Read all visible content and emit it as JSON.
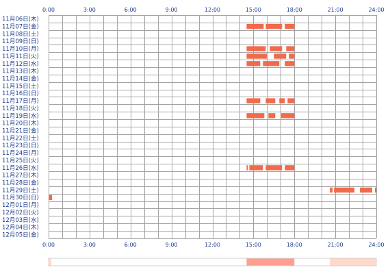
{
  "chart_data": {
    "type": "heatmap",
    "title": "",
    "xlabel": "",
    "ylabel": "",
    "x_ticks": [
      "0:00",
      "3:00",
      "6:00",
      "9:00",
      "12:00",
      "15:00",
      "18:00",
      "21:00",
      "24:00"
    ],
    "x_range_hours": [
      0,
      24
    ],
    "grid": true,
    "colors": {
      "activity": "#f26a4b",
      "grid": "#a3a3a3",
      "label": "#1a3a8c",
      "summary_high": "#ff9f8f",
      "summary_low": "#ffd9cc"
    },
    "rows": [
      {
        "label": "11月06日(木)",
        "intervals": []
      },
      {
        "label": "11月07日(金)",
        "intervals": [
          [
            14.5,
            15.75
          ],
          [
            15.9,
            17.1
          ],
          [
            17.3,
            18.0
          ]
        ]
      },
      {
        "label": "11月08日(土)",
        "intervals": []
      },
      {
        "label": "11月09日(日)",
        "intervals": []
      },
      {
        "label": "11月10日(月)",
        "intervals": [
          [
            14.5,
            15.9
          ],
          [
            16.2,
            17.1
          ],
          [
            17.4,
            18.0
          ]
        ]
      },
      {
        "label": "11月11日(火)",
        "intervals": [
          [
            14.5,
            16.0
          ],
          [
            16.5,
            17.4
          ],
          [
            17.6,
            18.0
          ]
        ]
      },
      {
        "label": "11月12日(水)",
        "intervals": [
          [
            14.5,
            15.5
          ],
          [
            15.7,
            16.9
          ],
          [
            17.3,
            18.0
          ]
        ]
      },
      {
        "label": "11月13日(木)",
        "intervals": []
      },
      {
        "label": "11月14日(金)",
        "intervals": []
      },
      {
        "label": "11月15日(土)",
        "intervals": []
      },
      {
        "label": "11月16日(日)",
        "intervals": []
      },
      {
        "label": "11月17日(月)",
        "intervals": [
          [
            14.5,
            15.5
          ],
          [
            15.9,
            16.6
          ],
          [
            16.9,
            17.3
          ],
          [
            17.5,
            18.0
          ]
        ]
      },
      {
        "label": "11月18日(火)",
        "intervals": []
      },
      {
        "label": "11月19日(水)",
        "intervals": [
          [
            14.5,
            15.8
          ],
          [
            16.1,
            16.6
          ],
          [
            17.0,
            18.0
          ]
        ]
      },
      {
        "label": "11月20日(木)",
        "intervals": []
      },
      {
        "label": "11月21日(金)",
        "intervals": []
      },
      {
        "label": "11月22日(土)",
        "intervals": []
      },
      {
        "label": "11月23日(日)",
        "intervals": []
      },
      {
        "label": "11月24日(月)",
        "intervals": []
      },
      {
        "label": "11月25日(火)",
        "intervals": []
      },
      {
        "label": "11月26日(水)",
        "intervals": [
          [
            14.5,
            14.6
          ],
          [
            14.7,
            15.7
          ],
          [
            15.9,
            17.1
          ],
          [
            17.3,
            18.0
          ]
        ]
      },
      {
        "label": "11月27日(木)",
        "intervals": []
      },
      {
        "label": "11月28日(金)",
        "intervals": []
      },
      {
        "label": "11月29日(土)",
        "intervals": [
          [
            20.6,
            20.8
          ],
          [
            20.9,
            22.4
          ],
          [
            22.8,
            23.7
          ],
          [
            23.9,
            24.0
          ]
        ]
      },
      {
        "label": "11月30日(日)",
        "intervals": [
          [
            0.0,
            0.25
          ]
        ]
      },
      {
        "label": "12月01日(月)",
        "intervals": []
      },
      {
        "label": "12月02日(火)",
        "intervals": []
      },
      {
        "label": "12月03日(水)",
        "intervals": []
      },
      {
        "label": "12月04日(木)",
        "intervals": []
      },
      {
        "label": "12月05日(金)",
        "intervals": []
      }
    ],
    "summary_bands": [
      {
        "range": [
          0.0,
          0.2
        ],
        "level": "low"
      },
      {
        "range": [
          14.5,
          18.0
        ],
        "level": "high"
      },
      {
        "range": [
          20.6,
          24.0
        ],
        "level": "low"
      }
    ]
  }
}
